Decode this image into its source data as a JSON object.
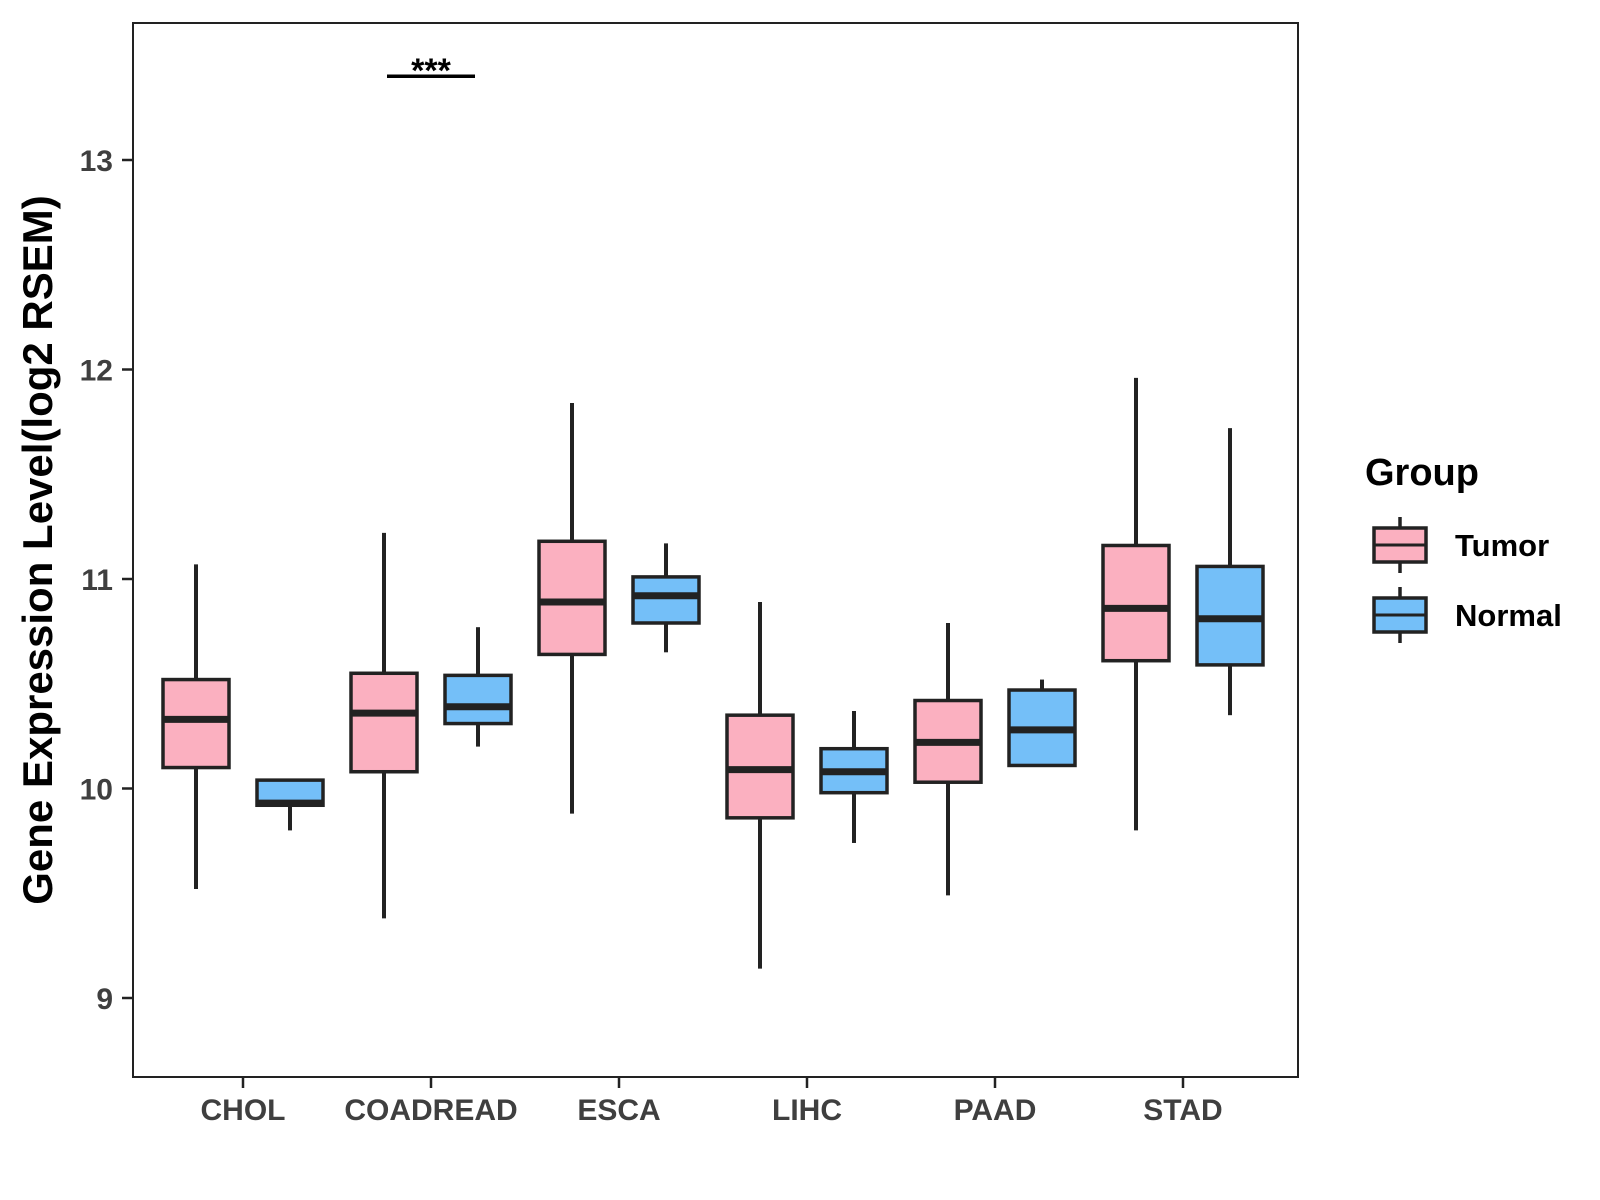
{
  "chart_data": {
    "type": "boxplot",
    "title": "",
    "xlabel": "",
    "ylabel": "Gene Expression Level(log2 RSEM)",
    "ylim": [
      8.6,
      13.65
    ],
    "yticks": [
      9,
      10,
      11,
      12,
      13
    ],
    "categories": [
      "CHOL",
      "COADREAD",
      "ESCA",
      "LIHC",
      "PAAD",
      "STAD"
    ],
    "legend": {
      "title": "Group",
      "position": "right"
    },
    "series": [
      {
        "name": "Tumor",
        "color": "#fbb0c0",
        "boxes": [
          {
            "min": 9.52,
            "q1": 10.1,
            "median": 10.33,
            "q3": 10.52,
            "max": 11.07
          },
          {
            "min": 9.38,
            "q1": 10.08,
            "median": 10.36,
            "q3": 10.55,
            "max": 11.22
          },
          {
            "min": 9.88,
            "q1": 10.64,
            "median": 10.89,
            "q3": 11.18,
            "max": 11.84
          },
          {
            "min": 9.14,
            "q1": 9.86,
            "median": 10.09,
            "q3": 10.35,
            "max": 10.89
          },
          {
            "min": 9.49,
            "q1": 10.03,
            "median": 10.22,
            "q3": 10.42,
            "max": 10.79
          },
          {
            "min": 9.8,
            "q1": 10.61,
            "median": 10.86,
            "q3": 11.16,
            "max": 11.96
          }
        ]
      },
      {
        "name": "Normal",
        "color": "#74bff8",
        "boxes": [
          {
            "min": 9.8,
            "q1": 9.92,
            "median": 9.93,
            "q3": 10.04,
            "max": 10.04
          },
          {
            "min": 10.2,
            "q1": 10.31,
            "median": 10.39,
            "q3": 10.54,
            "max": 10.77
          },
          {
            "min": 10.65,
            "q1": 10.79,
            "median": 10.92,
            "q3": 11.01,
            "max": 11.17
          },
          {
            "min": 9.74,
            "q1": 9.98,
            "median": 10.08,
            "q3": 10.19,
            "max": 10.37
          },
          {
            "min": 10.11,
            "q1": 10.11,
            "median": 10.28,
            "q3": 10.47,
            "max": 10.52
          },
          {
            "min": 10.35,
            "q1": 10.59,
            "median": 10.81,
            "q3": 11.06,
            "max": 11.72
          }
        ]
      }
    ],
    "annotations": [
      {
        "category": "COADREAD",
        "text": "***",
        "y": 13.4
      }
    ]
  }
}
